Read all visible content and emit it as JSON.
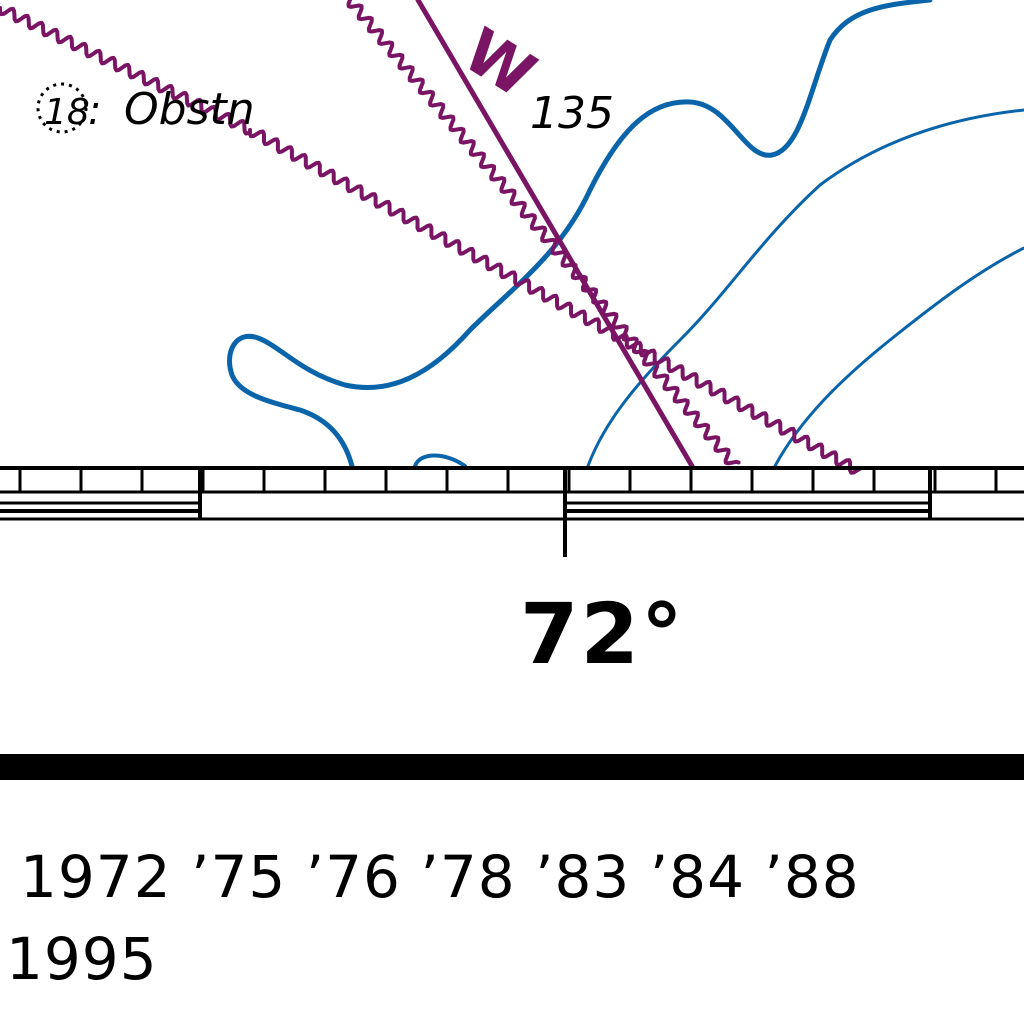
{
  "map": {
    "obstruction_label": "Obstn",
    "obstruction_sounding": "18",
    "depth_sounding": "135",
    "lane_label": "W",
    "meridian_label": "72°",
    "edition_years_line1": "1972 ’75 ’76 ’78 ’83 ’84 ’88",
    "edition_years_line2": "1995",
    "colors": {
      "contour": "#0a64aa",
      "traffic_lane": "#7a1464",
      "border": "#000000",
      "background": "#ffffff"
    }
  }
}
